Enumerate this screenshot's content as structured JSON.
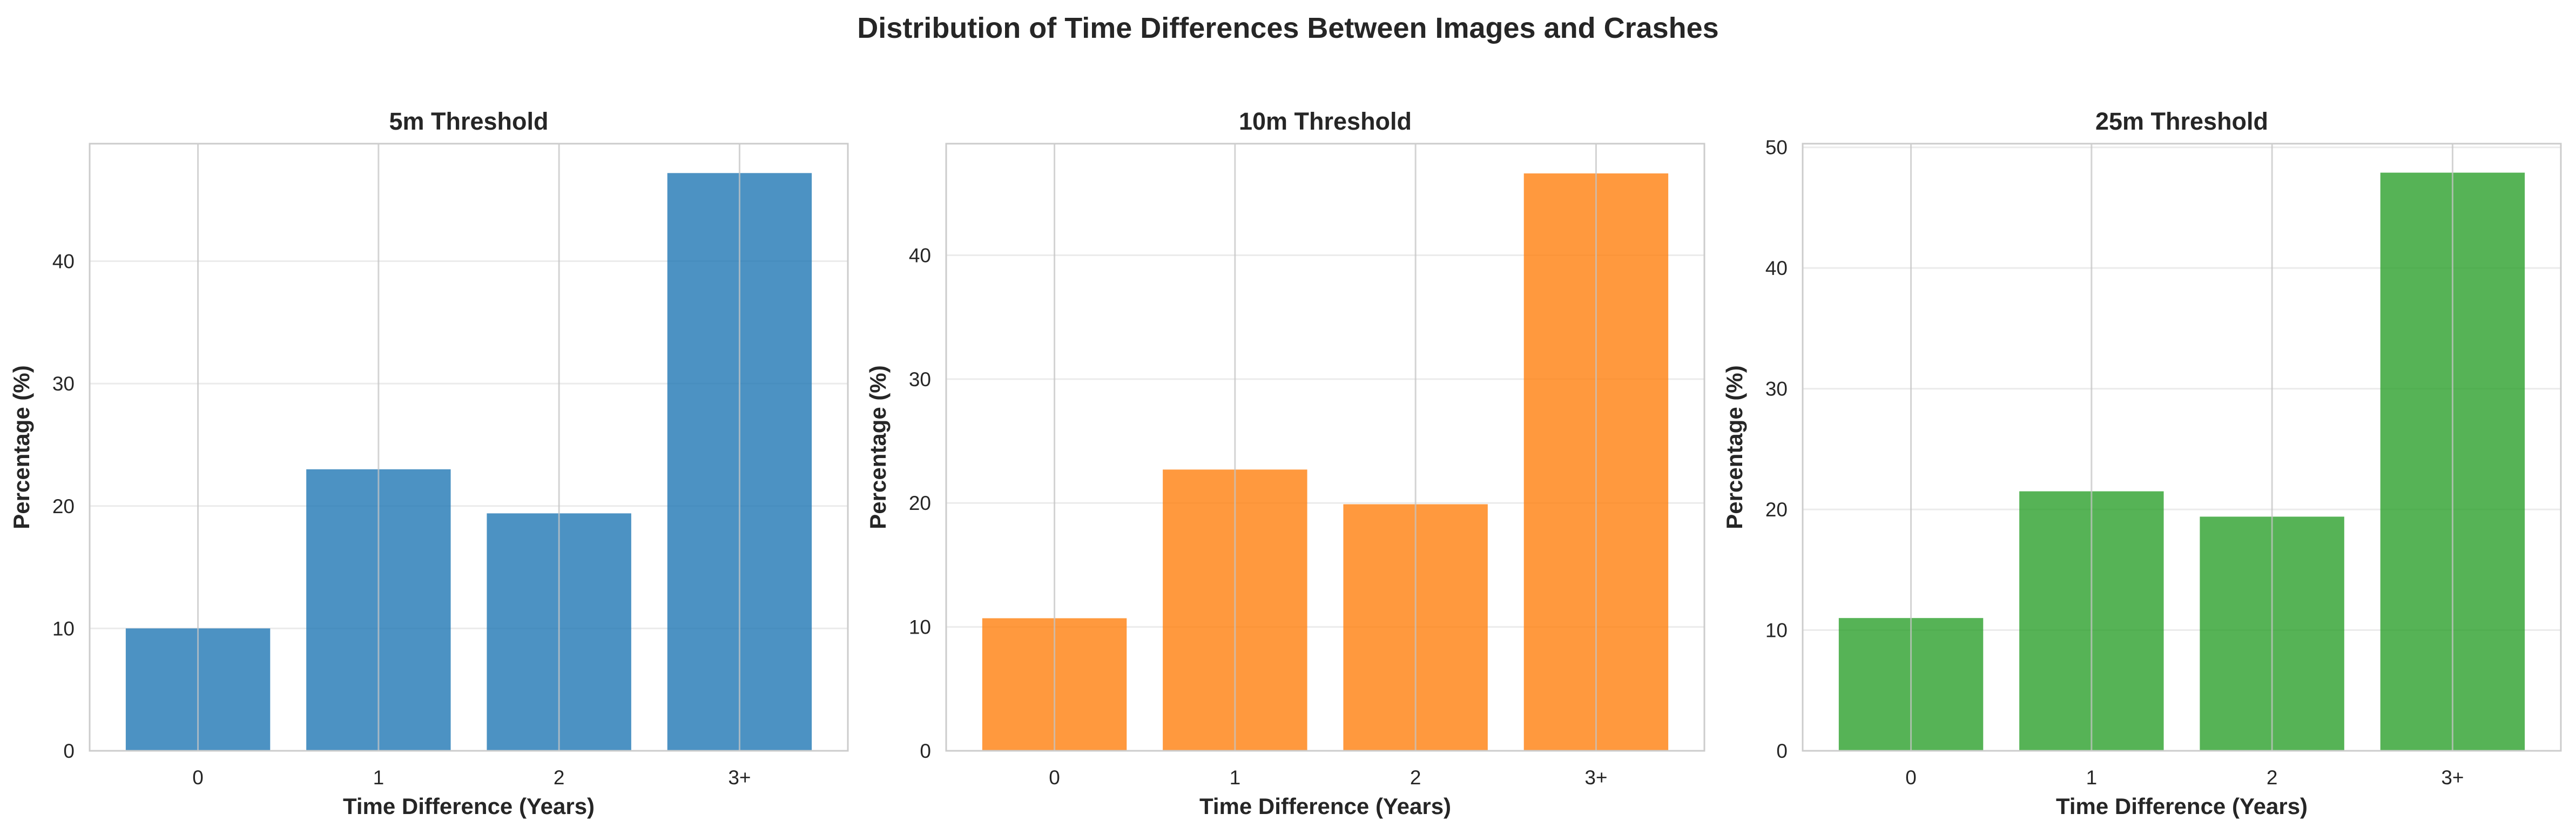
{
  "figure": {
    "suptitle": "Distribution of Time Differences Between Images and Crashes"
  },
  "chart_data": [
    {
      "type": "bar",
      "title": "5m Threshold",
      "xlabel": "Time Difference (Years)",
      "ylabel": "Percentage (%)",
      "categories": [
        "0",
        "1",
        "2",
        "3+"
      ],
      "values": [
        10.0,
        23.0,
        19.4,
        47.2
      ],
      "ylim": [
        0,
        49.6
      ],
      "yticks": [
        0,
        10,
        20,
        30,
        40
      ],
      "color": "#1f77b4",
      "grid": true,
      "legend": "none"
    },
    {
      "type": "bar",
      "title": "10m Threshold",
      "xlabel": "Time Difference (Years)",
      "ylabel": "Percentage (%)",
      "categories": [
        "0",
        "1",
        "2",
        "3+"
      ],
      "values": [
        10.7,
        22.7,
        19.9,
        46.6
      ],
      "ylim": [
        0,
        49.0
      ],
      "yticks": [
        0,
        10,
        20,
        30,
        40
      ],
      "color": "#ff7f0e",
      "grid": true,
      "legend": "none"
    },
    {
      "type": "bar",
      "title": "25m Threshold",
      "xlabel": "Time Difference (Years)",
      "ylabel": "Percentage (%)",
      "categories": [
        "0",
        "1",
        "2",
        "3+"
      ],
      "values": [
        11.0,
        21.5,
        19.4,
        47.9
      ],
      "ylim": [
        0,
        50.3
      ],
      "yticks": [
        0,
        10,
        20,
        30,
        40,
        50
      ],
      "color": "#2ca02c",
      "grid": true,
      "legend": "none"
    }
  ]
}
